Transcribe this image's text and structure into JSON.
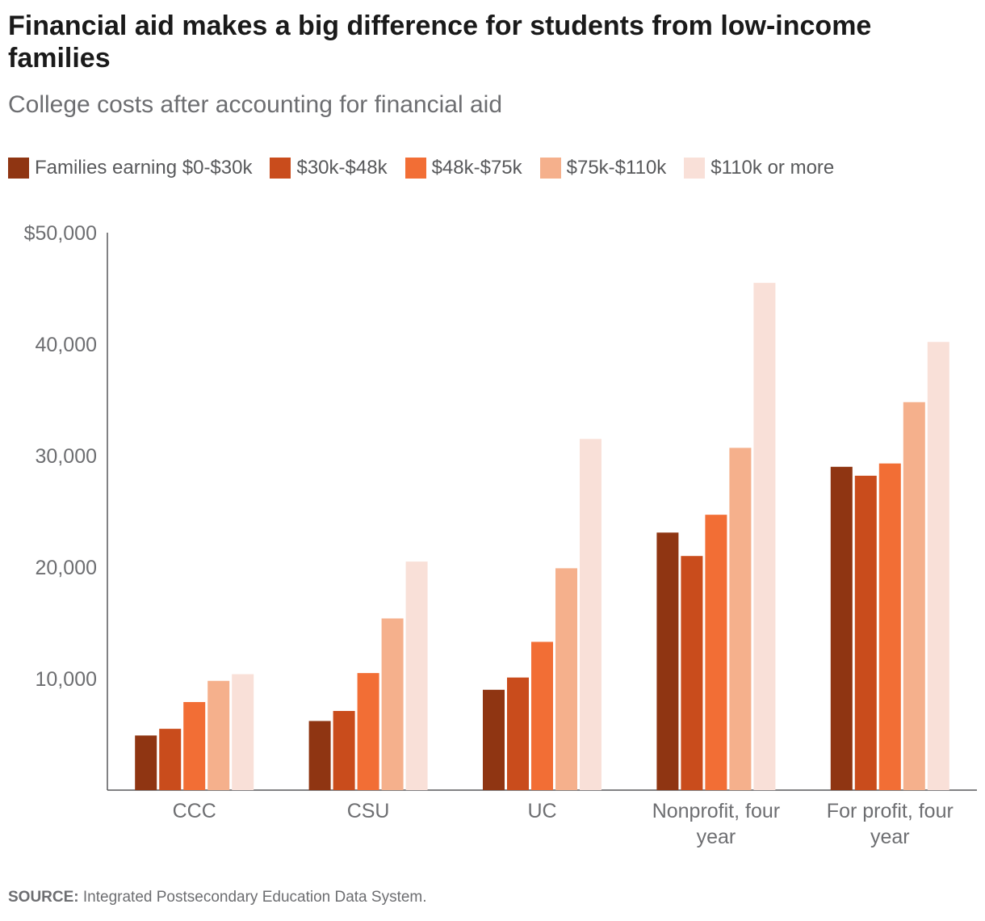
{
  "title": "Financial aid makes a big difference for students from low-income families",
  "subtitle": "College costs after accounting for financial aid",
  "source": {
    "label": "SOURCE:",
    "text": "Integrated Postsecondary Education Data System."
  },
  "chart_data": {
    "type": "bar",
    "categories": [
      "CCC",
      "CSU",
      "UC",
      "Nonprofit, four year",
      "For profit, four year"
    ],
    "series": [
      {
        "name": "Families earning $0-$30k",
        "color": "#8f3512",
        "values": [
          4900,
          6200,
          9000,
          23100,
          29000
        ]
      },
      {
        "name": "$30k-$48k",
        "color": "#c94c1c",
        "values": [
          5500,
          7100,
          10100,
          21000,
          28200
        ]
      },
      {
        "name": "$48k-$75k",
        "color": "#f26e35",
        "values": [
          7900,
          10500,
          13300,
          24700,
          29300
        ]
      },
      {
        "name": "$75k-$110k",
        "color": "#f5b08c",
        "values": [
          9800,
          15400,
          19900,
          30700,
          34800
        ]
      },
      {
        "name": "$110k or more",
        "color": "#f9e0d8",
        "values": [
          10400,
          20500,
          31500,
          45500,
          40200
        ]
      }
    ],
    "yticks": [
      "10,000",
      "20,000",
      "30,000",
      "40,000",
      "$50,000"
    ],
    "ytick_values": [
      10000,
      20000,
      30000,
      40000,
      50000
    ],
    "ylim": [
      0,
      50000
    ],
    "legend": "top-left",
    "grid": false
  }
}
